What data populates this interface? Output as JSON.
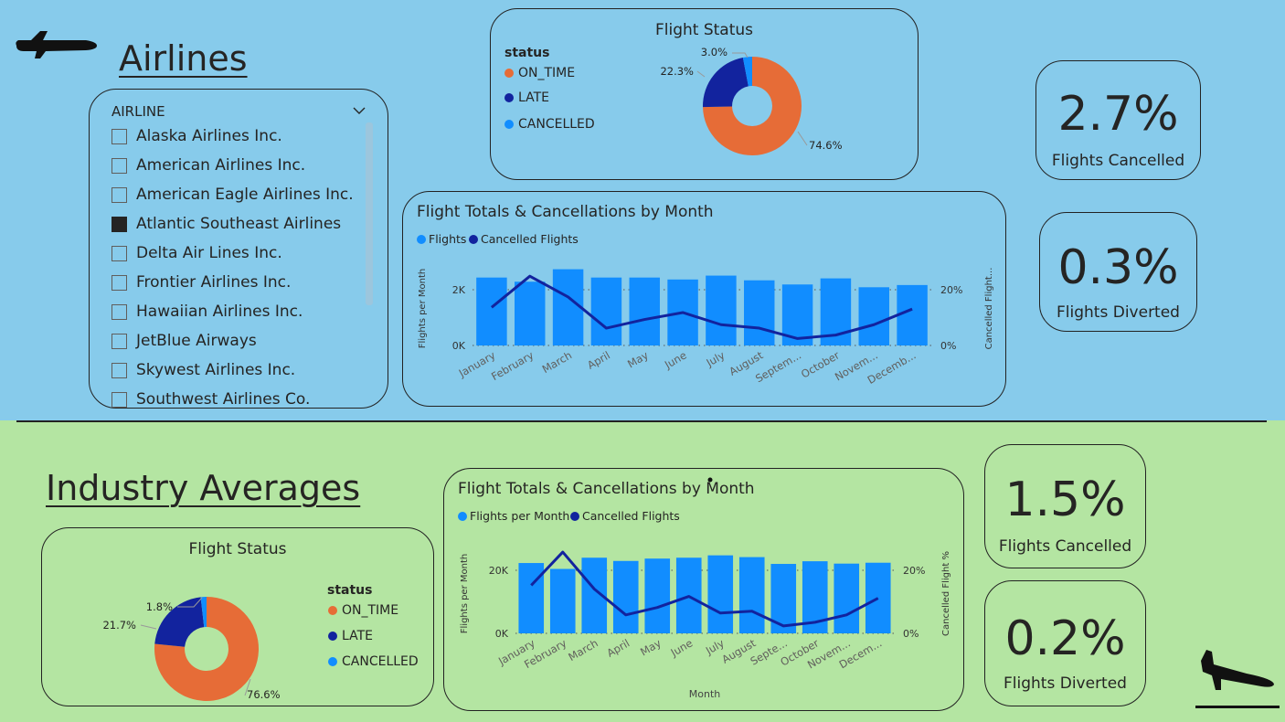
{
  "airlines": {
    "heading": "Airlines",
    "slicer": {
      "header": "AIRLINE",
      "items": [
        {
          "label": "Alaska Airlines Inc.",
          "checked": false
        },
        {
          "label": "American Airlines Inc.",
          "checked": false
        },
        {
          "label": "American Eagle Airlines Inc.",
          "checked": false
        },
        {
          "label": "Atlantic Southeast Airlines",
          "checked": true
        },
        {
          "label": "Delta Air Lines Inc.",
          "checked": false
        },
        {
          "label": "Frontier Airlines Inc.",
          "checked": false
        },
        {
          "label": "Hawaiian Airlines Inc.",
          "checked": false
        },
        {
          "label": "JetBlue Airways",
          "checked": false
        },
        {
          "label": "Skywest Airlines Inc.",
          "checked": false
        },
        {
          "label": "Southwest Airlines Co.",
          "checked": false
        }
      ]
    },
    "status_card": {
      "title": "Flight Status",
      "legend_title": "status",
      "legend": [
        "ON_TIME",
        "LATE",
        "CANCELLED"
      ],
      "pct_labels": [
        "74.6%",
        "22.3%",
        "3.0%"
      ]
    },
    "kpi_cancelled": {
      "value": "2.7%",
      "label": "Flights Cancelled"
    },
    "kpi_diverted": {
      "value": "0.3%",
      "label": "Flights Diverted"
    },
    "month_chart": {
      "title": "Flight Totals & Cancellations by Month",
      "legend": [
        "Flights",
        "Cancelled Flights"
      ],
      "y_left_label": "Flights per Month",
      "y_right_label": "Cancelled Flight...",
      "y_left_ticks": [
        "2K",
        "0K"
      ],
      "y_right_ticks": [
        "20%",
        "0%"
      ],
      "x_ticks": [
        "January",
        "February",
        "March",
        "April",
        "May",
        "June",
        "July",
        "August",
        "Septem...",
        "October",
        "Novem...",
        "Decemb..."
      ]
    }
  },
  "industry": {
    "heading": "Industry Averages",
    "status_card": {
      "title": "Flight Status",
      "legend_title": "status",
      "legend": [
        "ON_TIME",
        "LATE",
        "CANCELLED"
      ],
      "pct_labels": [
        "76.6%",
        "21.7%",
        "1.8%"
      ]
    },
    "kpi_cancelled": {
      "value": "1.5%",
      "label": "Flights Cancelled"
    },
    "kpi_diverted": {
      "value": "0.2%",
      "label": "Flights Diverted"
    },
    "month_chart": {
      "title": "Flight Totals & Cancellations by Month",
      "legend": [
        "Flights per Month",
        "Cancelled Flights"
      ],
      "y_left_label": "Flights per Month",
      "y_right_label": "Cancelled Flight %",
      "y_left_ticks": [
        "20K",
        "0K"
      ],
      "y_right_ticks": [
        "20%",
        "0%"
      ],
      "x_label": "Month",
      "x_ticks": [
        "January",
        "February",
        "March",
        "April",
        "May",
        "June",
        "July",
        "August",
        "Septe...",
        "October",
        "Novem...",
        "Decem..."
      ]
    }
  },
  "colors": {
    "on_time": "#e66c37",
    "late": "#12239e",
    "cancelled": "#118dff",
    "bar": "#118dff",
    "line": "#12239e",
    "top_bg": "#87cbeb",
    "bottom_bg": "#b4e5a2"
  },
  "icons": [
    "airplane-icon",
    "airplane-landing-icon",
    "chevron-down-icon"
  ],
  "chart_data": [
    {
      "type": "pie",
      "title": "Flight Status",
      "categories": [
        "ON_TIME",
        "LATE",
        "CANCELLED"
      ],
      "values": [
        74.6,
        22.3,
        3.0
      ]
    },
    {
      "type": "bar",
      "title": "Flight Totals & Cancellations by Month",
      "categories": [
        "January",
        "February",
        "March",
        "April",
        "May",
        "June",
        "July",
        "August",
        "September",
        "October",
        "November",
        "December"
      ],
      "series": [
        {
          "name": "Flights",
          "values": [
            2450,
            2300,
            2750,
            2450,
            2450,
            2380,
            2520,
            2350,
            2200,
            2420,
            2100,
            2180
          ],
          "axis": "left"
        },
        {
          "name": "Cancelled Flights",
          "values": [
            11,
            20,
            14,
            5,
            7.5,
            9.5,
            6,
            5,
            2,
            3,
            6,
            10.5
          ],
          "axis": "right",
          "type": "line"
        }
      ],
      "ylim_left": [
        0,
        3000
      ],
      "ylim_right": [
        0,
        24
      ]
    },
    {
      "type": "pie",
      "title": "Flight Status",
      "categories": [
        "ON_TIME",
        "LATE",
        "CANCELLED"
      ],
      "values": [
        76.6,
        21.7,
        1.8
      ]
    },
    {
      "type": "bar",
      "title": "Flight Totals & Cancellations by Month",
      "categories": [
        "January",
        "February",
        "March",
        "April",
        "May",
        "June",
        "July",
        "August",
        "September",
        "October",
        "November",
        "December"
      ],
      "series": [
        {
          "name": "Flights per Month",
          "values": [
            23800,
            21800,
            25600,
            24500,
            25300,
            25600,
            26400,
            25800,
            23500,
            24400,
            23600,
            23900
          ],
          "axis": "left"
        },
        {
          "name": "Cancelled Flights",
          "values": [
            13,
            22,
            12,
            5,
            7,
            10,
            5.5,
            6,
            2,
            3,
            5,
            9.5
          ],
          "axis": "right",
          "type": "line"
        }
      ],
      "ylim_left": [
        0,
        30000
      ],
      "ylim_right": [
        0,
        24
      ]
    }
  ]
}
